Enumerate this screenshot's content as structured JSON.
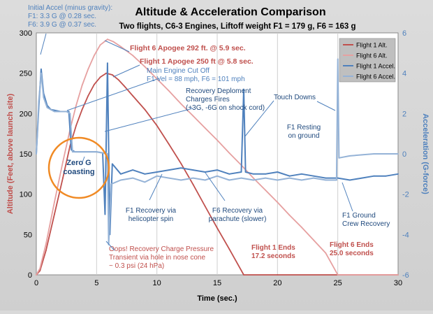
{
  "chart_data": {
    "type": "line",
    "title": "Altitude & Acceleration Comparison",
    "subtitle": "Two flights, C6-3 Engines,  Liftoff weight F1 = 179 g, F6 = 163 g",
    "xlabel": "Time (sec.)",
    "ylabel_left": "Altitude (Feet, above launch site)",
    "ylabel_right": "Acceleration (G-force)",
    "xlim": [
      0,
      30
    ],
    "ylim_left": [
      0,
      300
    ],
    "ylim_right": [
      -6,
      6
    ],
    "x_ticks": [
      "0",
      "5",
      "10",
      "15",
      "20",
      "25",
      "30"
    ],
    "y_left_ticks": [
      "0",
      "50",
      "100",
      "150",
      "200",
      "250",
      "300"
    ],
    "y_right_ticks": [
      "-6",
      "-4",
      "-2",
      "0",
      "2",
      "4",
      "6"
    ],
    "grid": "vertical gridlines at each x tick",
    "legend_position": "top-right",
    "series": [
      {
        "name": "Flight 1 Alt.",
        "axis": "left",
        "color": "#c0504d",
        "points": [
          [
            0,
            0
          ],
          [
            0.3,
            5
          ],
          [
            0.8,
            30
          ],
          [
            1.5,
            75
          ],
          [
            2.2,
            120
          ],
          [
            2.8,
            160
          ],
          [
            3.3,
            185
          ],
          [
            3.8,
            205
          ],
          [
            4.3,
            222
          ],
          [
            4.8,
            236
          ],
          [
            5.3,
            245
          ],
          [
            5.8,
            250
          ],
          [
            6.3,
            248
          ],
          [
            6.8,
            242
          ],
          [
            7.3,
            234
          ],
          [
            8,
            222
          ],
          [
            9,
            205
          ],
          [
            10,
            185
          ],
          [
            11,
            162
          ],
          [
            12,
            138
          ],
          [
            13,
            112
          ],
          [
            14,
            85
          ],
          [
            15,
            58
          ],
          [
            16,
            32
          ],
          [
            17.2,
            0
          ],
          [
            20,
            0
          ],
          [
            25,
            0
          ],
          [
            30,
            0
          ]
        ]
      },
      {
        "name": "Flight 6 Alt.",
        "axis": "left",
        "color": "#e6a0a0",
        "points": [
          [
            0,
            0
          ],
          [
            0.3,
            8
          ],
          [
            0.8,
            38
          ],
          [
            1.5,
            90
          ],
          [
            2.2,
            140
          ],
          [
            2.8,
            180
          ],
          [
            3.3,
            210
          ],
          [
            3.8,
            235
          ],
          [
            4.3,
            255
          ],
          [
            4.8,
            272
          ],
          [
            5.3,
            285
          ],
          [
            5.9,
            292
          ],
          [
            6.4,
            289
          ],
          [
            7,
            283
          ],
          [
            8,
            272
          ],
          [
            9,
            258
          ],
          [
            10,
            243
          ],
          [
            11,
            228
          ],
          [
            12,
            212
          ],
          [
            13,
            197
          ],
          [
            14,
            182
          ],
          [
            15,
            167
          ],
          [
            16,
            151
          ],
          [
            17,
            136
          ],
          [
            18,
            120
          ],
          [
            19,
            105
          ],
          [
            20,
            90
          ],
          [
            21,
            74
          ],
          [
            22,
            59
          ],
          [
            23,
            43
          ],
          [
            24,
            27
          ],
          [
            25,
            0
          ],
          [
            30,
            0
          ]
        ]
      },
      {
        "name": "Flight 1 Accel.",
        "axis": "right",
        "color": "#4f81bd",
        "points": [
          [
            0,
            0
          ],
          [
            0.2,
            2.3
          ],
          [
            0.4,
            4.2
          ],
          [
            0.6,
            3
          ],
          [
            0.9,
            2.4
          ],
          [
            1.2,
            2.2
          ],
          [
            2,
            2.1
          ],
          [
            2.7,
            2.1
          ],
          [
            2.9,
            0.2
          ],
          [
            3.2,
            0.1
          ],
          [
            4,
            0.1
          ],
          [
            5,
            0.1
          ],
          [
            5.5,
            0.05
          ],
          [
            5.7,
            -3
          ],
          [
            5.9,
            4.5
          ],
          [
            6.1,
            -4
          ],
          [
            6.3,
            -0.5
          ],
          [
            7,
            -1
          ],
          [
            8,
            -0.8
          ],
          [
            9,
            -1
          ],
          [
            10,
            -0.9
          ],
          [
            11,
            -0.8
          ],
          [
            12,
            -0.7
          ],
          [
            13,
            -0.8
          ],
          [
            14,
            -0.9
          ],
          [
            15,
            -0.8
          ],
          [
            16,
            -1
          ],
          [
            17,
            -0.9
          ],
          [
            17.2,
            3.2
          ],
          [
            17.35,
            -0.9
          ],
          [
            18,
            -1
          ],
          [
            19,
            -1
          ],
          [
            20,
            -0.9
          ],
          [
            21,
            -1.1
          ],
          [
            22,
            -1
          ],
          [
            23,
            -1.1
          ],
          [
            24,
            -1.2
          ],
          [
            25,
            -1.2
          ],
          [
            26,
            -1.3
          ],
          [
            27,
            -1.2
          ],
          [
            28,
            -1.1
          ],
          [
            29,
            -1.1
          ],
          [
            30,
            -1
          ]
        ]
      },
      {
        "name": "Flight 6 Accel.",
        "axis": "right",
        "color": "#95b3d7",
        "points": [
          [
            0,
            0
          ],
          [
            0.2,
            2.6
          ],
          [
            0.4,
            4.0
          ],
          [
            0.6,
            2.8
          ],
          [
            0.9,
            2.3
          ],
          [
            1.5,
            2.1
          ],
          [
            2.5,
            2.1
          ],
          [
            2.8,
            2.0
          ],
          [
            3,
            0.1
          ],
          [
            4,
            0.1
          ],
          [
            5,
            0.1
          ],
          [
            5.9,
            0
          ],
          [
            6,
            -4.5
          ],
          [
            6.2,
            -1.5
          ],
          [
            7,
            -1.3
          ],
          [
            8,
            -1.2
          ],
          [
            9,
            -1.4
          ],
          [
            10,
            -1.1
          ],
          [
            11,
            -1.2
          ],
          [
            12,
            -1.3
          ],
          [
            13,
            -1.2
          ],
          [
            14,
            -1.3
          ],
          [
            15,
            -1.1
          ],
          [
            16,
            -1.3
          ],
          [
            17,
            -1.2
          ],
          [
            18,
            -1.3
          ],
          [
            19,
            -1.2
          ],
          [
            20,
            -1.3
          ],
          [
            21,
            -1.2
          ],
          [
            22,
            -1.3
          ],
          [
            23,
            -1.2
          ],
          [
            24,
            -1.3
          ],
          [
            24.9,
            -1.3
          ],
          [
            25,
            4.7
          ],
          [
            25.1,
            -0.2
          ],
          [
            26,
            -0.1
          ],
          [
            27,
            -0.05
          ],
          [
            28,
            0
          ],
          [
            29,
            0
          ],
          [
            30,
            0
          ]
        ]
      }
    ],
    "annotations": [
      {
        "id": "initial-accel",
        "lines": [
          "Initial Accel (minus gravity):",
          "F1: 3.3 G @ 0.28 sec.",
          "F6: 3.9 G @ 0.37 sec."
        ],
        "color": "#4f81bd"
      },
      {
        "id": "f6-apogee",
        "lines": [
          "Flight 6 Apogee 292 ft. @ 5.9 sec."
        ],
        "color": "#c0504d"
      },
      {
        "id": "f1-apogee",
        "lines": [
          "Flight 1 Apogee 250 ft @ 5.8 sec."
        ],
        "color": "#c0504d"
      },
      {
        "id": "meco",
        "lines": [
          "Main Engine Cut Off",
          "F1 Vel = 88 mph, F6 = 101 mph"
        ],
        "color": "#4f81bd"
      },
      {
        "id": "deployment",
        "lines": [
          "Recovery Deploment",
          "Charges Fires",
          "(+3G, -6G on shock cord)"
        ],
        "color": "#1f497d"
      },
      {
        "id": "touchdowns",
        "lines": [
          "Touch Downs"
        ],
        "color": "#1f497d"
      },
      {
        "id": "resting",
        "lines": [
          "F1 Resting",
          "on ground"
        ],
        "color": "#1f497d"
      },
      {
        "id": "zero-g",
        "lines": [
          "Zero G",
          "coasting"
        ],
        "color": "#1f497d"
      },
      {
        "id": "heli",
        "lines": [
          "F1 Recovery via",
          "helicopter spin"
        ],
        "color": "#1f497d"
      },
      {
        "id": "parachute",
        "lines": [
          "F6 Recovery via",
          "parachute (slower)"
        ],
        "color": "#1f497d"
      },
      {
        "id": "ground-crew",
        "lines": [
          "F1 Ground",
          "Crew Recovery"
        ],
        "color": "#1f497d"
      },
      {
        "id": "oops",
        "lines": [
          "Oops! Recovery Charge Pressure",
          "Transient via hole in nose cone",
          "~ 0.3 psi (24 hPa)"
        ],
        "color": "#c0504d"
      },
      {
        "id": "f1-ends",
        "lines": [
          "Flight 1 Ends",
          "17.2 seconds"
        ],
        "color": "#c0504d"
      },
      {
        "id": "f6-ends",
        "lines": [
          "Flight 6 Ends",
          "25.0 seconds"
        ],
        "color": "#c0504d"
      }
    ]
  }
}
